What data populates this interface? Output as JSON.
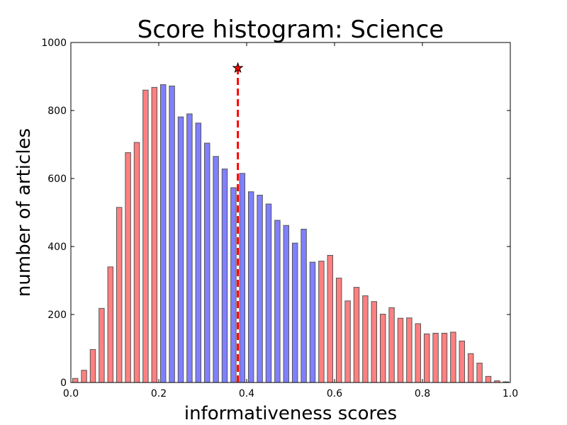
{
  "chart_data": {
    "type": "bar",
    "title": "Score histogram: Science",
    "xlabel": "informativeness scores",
    "ylabel": "number of articles",
    "xlim": [
      0.0,
      1.0
    ],
    "ylim": [
      0,
      1000
    ],
    "x_ticks": [
      "0.0",
      "0.2",
      "0.4",
      "0.6",
      "0.8",
      "1.0"
    ],
    "y_ticks": [
      "0",
      "200",
      "400",
      "600",
      "800",
      "1000"
    ],
    "bin_width": 0.02,
    "bin_centers": [
      0.01,
      0.03,
      0.05,
      0.07,
      0.09,
      0.11,
      0.13,
      0.15,
      0.17,
      0.19,
      0.21,
      0.23,
      0.25,
      0.27,
      0.29,
      0.31,
      0.33,
      0.35,
      0.37,
      0.39,
      0.41,
      0.43,
      0.45,
      0.47,
      0.49,
      0.51,
      0.53,
      0.55,
      0.57,
      0.59,
      0.61,
      0.63,
      0.65,
      0.67,
      0.69,
      0.71,
      0.73,
      0.75,
      0.77,
      0.79,
      0.81,
      0.83,
      0.85,
      0.87,
      0.89,
      0.91,
      0.93,
      0.95,
      0.97,
      0.99
    ],
    "values": [
      12,
      36,
      97,
      218,
      340,
      515,
      676,
      706,
      860,
      868,
      876,
      872,
      781,
      790,
      763,
      704,
      665,
      628,
      573,
      615,
      561,
      551,
      525,
      477,
      462,
      410,
      451,
      354,
      357,
      374,
      307,
      240,
      280,
      255,
      238,
      201,
      220,
      189,
      190,
      173,
      143,
      145,
      145,
      148,
      122,
      85,
      57,
      18,
      5,
      2
    ],
    "colors": {
      "low_high": "#ff8080",
      "middle": "#8080ff",
      "bar_edge": "#555555",
      "marker": "#ff0000"
    },
    "middle_range": [
      0.2,
      0.56
    ],
    "vline_x": 0.38,
    "marker_y": 925
  }
}
